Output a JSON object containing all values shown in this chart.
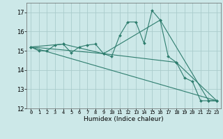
{
  "title": "",
  "xlabel": "Humidex (Indice chaleur)",
  "ylabel": "",
  "xlim": [
    -0.5,
    23.5
  ],
  "ylim": [
    12,
    17.5
  ],
  "yticks": [
    12,
    13,
    14,
    15,
    16,
    17
  ],
  "xticks": [
    0,
    1,
    2,
    3,
    4,
    5,
    6,
    7,
    8,
    9,
    10,
    11,
    12,
    13,
    14,
    15,
    16,
    17,
    18,
    19,
    20,
    21,
    22,
    23
  ],
  "background_color": "#cce8e8",
  "grid_color": "#aacccc",
  "line_color": "#2e7d6e",
  "series": [
    {
      "x": [
        0,
        1,
        2,
        3,
        4,
        5,
        6,
        7,
        8,
        9,
        10,
        11,
        12,
        13,
        14,
        15,
        16,
        17,
        18,
        19,
        20,
        21,
        22,
        23
      ],
      "y": [
        15.2,
        15.0,
        15.0,
        15.3,
        15.35,
        14.9,
        15.2,
        15.3,
        15.35,
        14.85,
        14.7,
        15.8,
        16.5,
        16.5,
        15.4,
        17.1,
        16.6,
        14.7,
        14.4,
        13.6,
        13.4,
        12.4,
        12.4,
        12.4
      ],
      "marker": true
    },
    {
      "x": [
        0,
        4,
        9,
        16,
        22,
        23
      ],
      "y": [
        15.2,
        15.35,
        14.85,
        16.6,
        12.4,
        12.4
      ],
      "marker": true
    },
    {
      "x": [
        0,
        23
      ],
      "y": [
        15.2,
        12.4
      ],
      "marker": false
    },
    {
      "x": [
        0,
        9,
        18,
        23
      ],
      "y": [
        15.2,
        14.85,
        14.4,
        12.4
      ],
      "marker": true
    }
  ]
}
